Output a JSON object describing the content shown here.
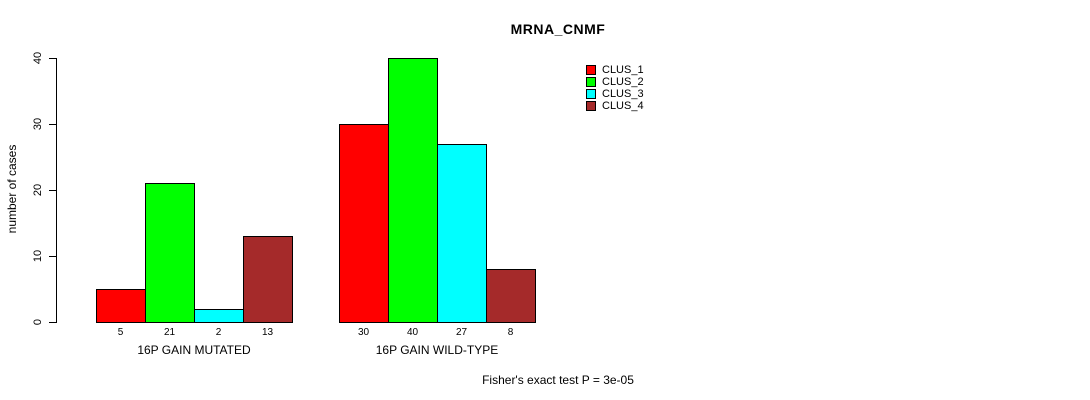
{
  "chart_data": {
    "type": "bar",
    "title": "MRNA_CNMF",
    "ylabel": "number of cases",
    "ylim": [
      0,
      40
    ],
    "yticks": [
      0,
      10,
      20,
      30,
      40
    ],
    "grid": false,
    "legend_position": "top-right",
    "groups": [
      "16P GAIN MUTATED",
      "16P GAIN WILD-TYPE"
    ],
    "series": [
      {
        "name": "CLUS_1",
        "color": "#ff0000",
        "values": [
          5,
          30
        ]
      },
      {
        "name": "CLUS_2",
        "color": "#00ff00",
        "values": [
          21,
          40
        ]
      },
      {
        "name": "CLUS_3",
        "color": "#00ffff",
        "values": [
          2,
          27
        ]
      },
      {
        "name": "CLUS_4",
        "color": "#a52a2a",
        "values": [
          13,
          8
        ]
      }
    ],
    "annotation": "Fisher's exact test P = 3e-05",
    "axis_color": "#000000"
  }
}
